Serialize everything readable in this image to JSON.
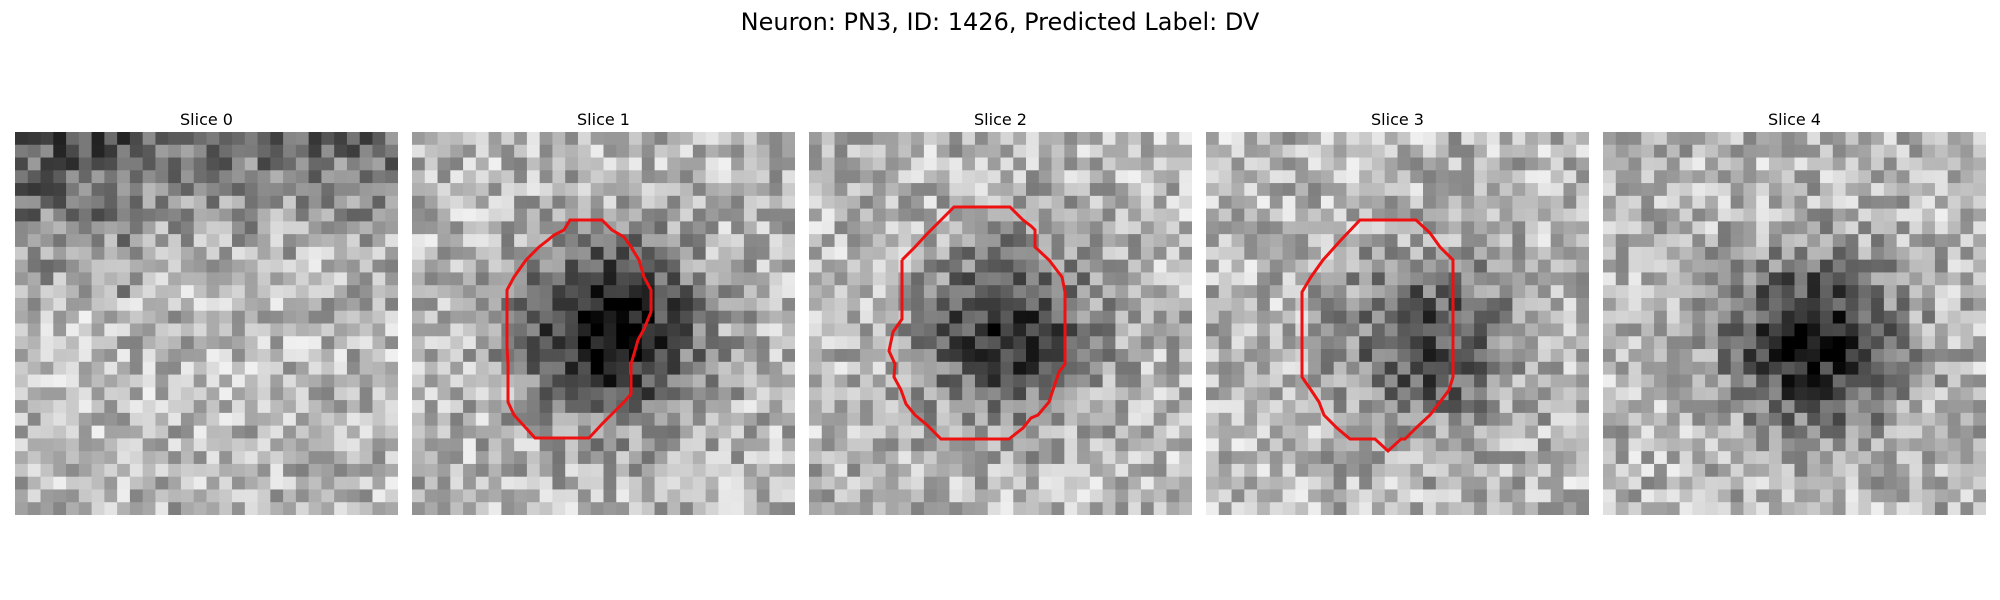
{
  "figure": {
    "title": "Neuron: PN3, ID: 1426, Predicted Label: DV"
  },
  "panels": [
    {
      "title": "Slice 0",
      "blob_center": [
        0.5,
        0.5
      ],
      "blob_strength": 0.0,
      "has_contour": false,
      "seed": 11
    },
    {
      "title": "Slice 1",
      "blob_center": [
        0.52,
        0.52
      ],
      "blob_strength": 0.75,
      "has_contour": true,
      "seed": 23
    },
    {
      "title": "Slice 2",
      "blob_center": [
        0.52,
        0.52
      ],
      "blob_strength": 0.55,
      "has_contour": true,
      "seed": 37
    },
    {
      "title": "Slice 3",
      "blob_center": [
        0.58,
        0.55
      ],
      "blob_strength": 0.45,
      "has_contour": true,
      "seed": 41
    },
    {
      "title": "Slice 4",
      "blob_center": [
        0.55,
        0.55
      ],
      "blob_strength": 0.65,
      "has_contour": false,
      "seed": 53
    }
  ],
  "colors": {
    "contour": "#ee1111",
    "background": "#ffffff"
  }
}
